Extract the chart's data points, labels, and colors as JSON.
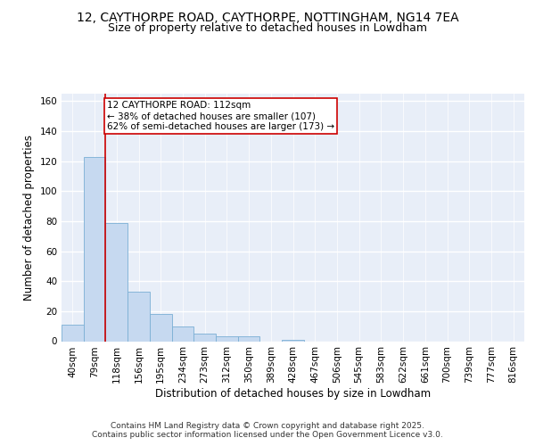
{
  "title_line1": "12, CAYTHORPE ROAD, CAYTHORPE, NOTTINGHAM, NG14 7EA",
  "title_line2": "Size of property relative to detached houses in Lowdham",
  "xlabel": "Distribution of detached houses by size in Lowdham",
  "ylabel": "Number of detached properties",
  "bar_labels": [
    "40sqm",
    "79sqm",
    "118sqm",
    "156sqm",
    "195sqm",
    "234sqm",
    "273sqm",
    "312sqm",
    "350sqm",
    "389sqm",
    "428sqm",
    "467sqm",
    "506sqm",
    "545sqm",
    "583sqm",
    "622sqm",
    "661sqm",
    "700sqm",
    "739sqm",
    "777sqm",
    "816sqm"
  ],
  "bar_values": [
    11,
    123,
    79,
    33,
    18,
    10,
    5,
    3,
    3,
    0,
    1,
    0,
    0,
    0,
    0,
    0,
    0,
    0,
    0,
    0,
    0
  ],
  "bar_color": "#c6d9f0",
  "bar_edge_color": "#7bafd4",
  "vline_x": 1.5,
  "vline_color": "#cc0000",
  "annotation_text": "12 CAYTHORPE ROAD: 112sqm\n← 38% of detached houses are smaller (107)\n62% of semi-detached houses are larger (173) →",
  "annotation_box_color": "#ffffff",
  "annotation_box_edgecolor": "#cc0000",
  "ylim": [
    0,
    165
  ],
  "yticks": [
    0,
    20,
    40,
    60,
    80,
    100,
    120,
    140,
    160
  ],
  "plot_bg_color": "#e8eef8",
  "grid_color": "#ffffff",
  "fig_bg_color": "#ffffff",
  "footer_text": "Contains HM Land Registry data © Crown copyright and database right 2025.\nContains public sector information licensed under the Open Government Licence v3.0.",
  "title_fontsize": 10,
  "subtitle_fontsize": 9,
  "axis_label_fontsize": 8.5,
  "tick_fontsize": 7.5,
  "annotation_fontsize": 7.5,
  "footer_fontsize": 6.5
}
